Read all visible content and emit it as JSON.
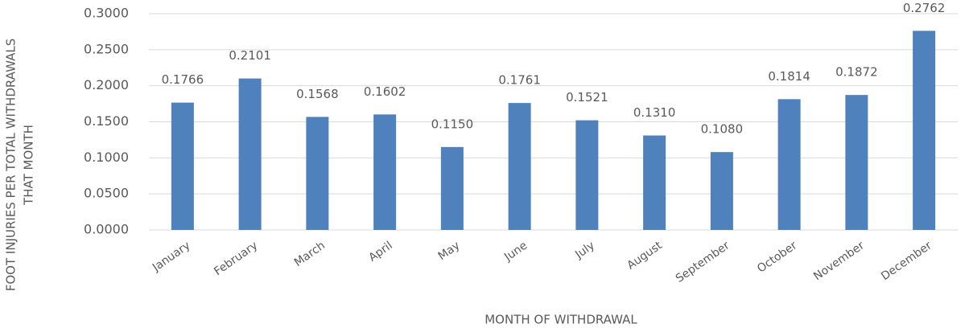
{
  "chart_data": {
    "type": "bar",
    "ylabel": [
      "FOOT INJURIES PER TOTAL WITHDRAWALS",
      "THAT MONTH"
    ],
    "xlabel": "MONTH OF WITHDRAWAL",
    "categories": [
      "January",
      "February",
      "March",
      "April",
      "May",
      "June",
      "July",
      "August",
      "September",
      "October",
      "November",
      "December"
    ],
    "values": [
      0.1766,
      0.2101,
      0.1568,
      0.1602,
      0.115,
      0.1761,
      0.1521,
      0.131,
      0.108,
      0.1814,
      0.1872,
      0.2762
    ],
    "value_labels": [
      "0.1766",
      "0.2101",
      "0.1568",
      "0.1602",
      "0.1150",
      "0.1761",
      "0.1521",
      "0.1310",
      "0.1080",
      "0.1814",
      "0.1872",
      "0.2762"
    ],
    "color": "#4f81bd",
    "ylim": [
      0,
      0.3
    ],
    "yticks": [
      {
        "value": 0,
        "label": "0.0000"
      },
      {
        "value": 0.05,
        "label": "0.0500"
      },
      {
        "value": 0.1,
        "label": "0.1000"
      },
      {
        "value": 0.15,
        "label": "0.1500"
      },
      {
        "value": 0.2,
        "label": "0.2000"
      },
      {
        "value": 0.25,
        "label": "0.2500"
      },
      {
        "value": 0.3,
        "label": "0.3000"
      }
    ],
    "grid": true
  }
}
